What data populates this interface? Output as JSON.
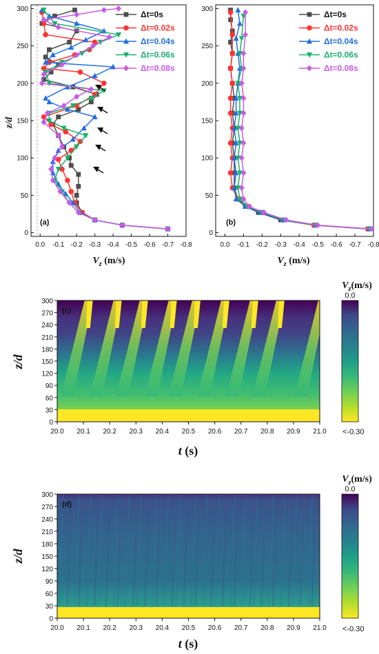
{
  "chart_data": [
    {
      "panel": "(a)",
      "type": "line",
      "xlabel_main": "V",
      "xlabel_sub": "z",
      "xlabel_unit": " (m/s)",
      "ylabel": "z/d",
      "xlim": [
        0.05,
        -0.8
      ],
      "ylim": [
        -5,
        305
      ],
      "xticks": [
        "0.0",
        "-0.1",
        "-0.2",
        "-0.3",
        "-0.4",
        "-0.5",
        "-0.6",
        "-0.7",
        "-0.8"
      ],
      "xtick_values": [
        0,
        -0.1,
        -0.2,
        -0.3,
        -0.4,
        -0.5,
        -0.6,
        -0.7,
        -0.8
      ],
      "yticks": [
        "0",
        "50",
        "100",
        "150",
        "200",
        "250",
        "300"
      ],
      "ytick_values": [
        0,
        50,
        100,
        150,
        200,
        250,
        300
      ],
      "legend_position": "top-right",
      "series": [
        {
          "name": "Δt=0s",
          "color": "#4d4d4d",
          "marker": "square",
          "x": [
            -0.7,
            -0.45,
            -0.3,
            -0.23,
            -0.2,
            -0.2,
            -0.21,
            -0.21,
            -0.17,
            -0.16,
            -0.13,
            -0.1,
            -0.07,
            -0.1,
            -0.21,
            -0.28,
            -0.31,
            -0.18,
            -0.02,
            -0.06,
            -0.1,
            -0.03,
            -0.05,
            -0.16,
            -0.2,
            -0.01,
            -0.08,
            -0.19
          ],
          "y": [
            5,
            10,
            17,
            27,
            40,
            50,
            62,
            78,
            90,
            100,
            115,
            130,
            145,
            155,
            165,
            175,
            185,
            195,
            205,
            215,
            225,
            235,
            245,
            255,
            270,
            280,
            290,
            298
          ]
        },
        {
          "name": "Δt=0.02s",
          "color": "#ff3333",
          "marker": "circle",
          "x": [
            -0.7,
            -0.45,
            -0.3,
            -0.23,
            -0.19,
            -0.17,
            -0.15,
            -0.12,
            -0.1,
            -0.17,
            -0.22,
            -0.14,
            -0.06,
            -0.02,
            -0.2,
            -0.3,
            -0.35,
            -0.22,
            -0.02,
            -0.05,
            -0.19,
            -0.27,
            -0.3,
            -0.03,
            -0.02,
            -0.01
          ],
          "y": [
            5,
            10,
            17,
            27,
            40,
            55,
            70,
            85,
            98,
            110,
            122,
            135,
            145,
            155,
            170,
            185,
            200,
            215,
            220,
            228,
            238,
            245,
            255,
            265,
            280,
            295
          ]
        },
        {
          "name": "Δt=0.04s",
          "color": "#1f6fe0",
          "marker": "triangle",
          "x": [
            -0.7,
            -0.45,
            -0.3,
            -0.22,
            -0.18,
            -0.14,
            -0.1,
            -0.07,
            -0.07,
            -0.1,
            -0.18,
            -0.24,
            -0.3,
            -0.15,
            -0.05,
            -0.03,
            -0.15,
            -0.3,
            -0.4,
            -0.03,
            -0.07,
            -0.17,
            -0.25,
            -0.35,
            -0.2,
            -0.05,
            -0.01
          ],
          "y": [
            5,
            10,
            17,
            27,
            40,
            52,
            65,
            80,
            95,
            110,
            125,
            140,
            155,
            165,
            175,
            180,
            195,
            210,
            222,
            228,
            238,
            248,
            258,
            270,
            280,
            290,
            298
          ]
        },
        {
          "name": "Δt=0.06s",
          "color": "#19b06a",
          "marker": "triangle-down",
          "x": [
            -0.7,
            -0.45,
            -0.3,
            -0.21,
            -0.16,
            -0.12,
            -0.08,
            -0.1,
            -0.15,
            -0.2,
            -0.25,
            -0.13,
            -0.05,
            -0.05,
            -0.18,
            -0.28,
            -0.35,
            -0.05,
            -0.03,
            -0.12,
            -0.23,
            -0.33,
            -0.43,
            -0.08,
            -0.02
          ],
          "y": [
            5,
            10,
            17,
            27,
            40,
            55,
            70,
            85,
            100,
            115,
            130,
            140,
            150,
            160,
            170,
            180,
            190,
            200,
            215,
            228,
            240,
            255,
            265,
            280,
            298
          ]
        },
        {
          "name": "Δt=0.08s",
          "color": "#c85ae6",
          "marker": "diamond",
          "x": [
            -0.7,
            -0.45,
            -0.3,
            -0.21,
            -0.16,
            -0.11,
            -0.07,
            -0.06,
            -0.08,
            -0.12,
            -0.1,
            -0.02,
            -0.04,
            -0.13,
            -0.2,
            -0.28,
            -0.01,
            -0.02,
            -0.12,
            -0.2,
            -0.29,
            -0.38,
            -0.1,
            -0.02,
            -0.2,
            -0.35,
            -0.43
          ],
          "y": [
            5,
            10,
            17,
            27,
            40,
            55,
            70,
            85,
            100,
            115,
            130,
            148,
            160,
            170,
            182,
            192,
            200,
            212,
            225,
            238,
            250,
            262,
            275,
            285,
            292,
            298,
            300
          ]
        }
      ]
    },
    {
      "panel": "(b)",
      "type": "line",
      "xlabel_main": "V",
      "xlabel_sub": "z",
      "xlabel_unit": " (m/s)",
      "xlim": [
        0.05,
        -0.8
      ],
      "ylim": [
        -5,
        305
      ],
      "xticks": [
        "0.0",
        "-0.1",
        "-0.2",
        "-0.3",
        "-0.4",
        "-0.5",
        "-0.6",
        "-0.7",
        "-0.8"
      ],
      "xtick_values": [
        0,
        -0.1,
        -0.2,
        -0.3,
        -0.4,
        -0.5,
        -0.6,
        -0.7,
        -0.8
      ],
      "yticks": [
        "0",
        "50",
        "100",
        "150",
        "200",
        "250",
        "300"
      ],
      "ytick_values": [
        0,
        50,
        100,
        150,
        200,
        250,
        300
      ],
      "legend_position": "top-right",
      "series": [
        {
          "name": "Δt=0s",
          "color": "#4d4d4d",
          "marker": "square",
          "x": [
            -0.77,
            -0.48,
            -0.3,
            -0.18,
            -0.11,
            -0.07,
            -0.05,
            -0.05,
            -0.05,
            -0.04,
            -0.05,
            -0.04,
            -0.05,
            -0.04,
            -0.03,
            -0.04,
            -0.03,
            -0.04,
            -0.03,
            -0.03
          ],
          "y": [
            5,
            10,
            17,
            27,
            35,
            45,
            60,
            80,
            100,
            120,
            140,
            160,
            180,
            200,
            220,
            240,
            255,
            270,
            285,
            298
          ]
        },
        {
          "name": "Δt=0.02s",
          "color": "#ff3333",
          "marker": "circle",
          "x": [
            -0.77,
            -0.48,
            -0.31,
            -0.2,
            -0.13,
            -0.07,
            -0.04,
            -0.03,
            -0.04,
            -0.03,
            -0.04,
            -0.03,
            -0.03,
            -0.04,
            -0.03,
            -0.04,
            -0.04,
            -0.03
          ],
          "y": [
            5,
            10,
            17,
            27,
            35,
            45,
            60,
            80,
            100,
            120,
            140,
            160,
            180,
            200,
            220,
            240,
            265,
            295
          ]
        },
        {
          "name": "Δt=0.04s",
          "color": "#1f6fe0",
          "marker": "triangle",
          "x": [
            -0.78,
            -0.49,
            -0.31,
            -0.19,
            -0.11,
            -0.06,
            -0.05,
            -0.06,
            -0.05,
            -0.06,
            -0.05,
            -0.06,
            -0.06,
            -0.07,
            -0.08,
            -0.07,
            -0.06,
            -0.08,
            -0.07
          ],
          "y": [
            5,
            10,
            17,
            27,
            35,
            45,
            60,
            80,
            100,
            120,
            140,
            160,
            180,
            200,
            220,
            240,
            260,
            280,
            298
          ]
        },
        {
          "name": "Δt=0.06s",
          "color": "#19b06a",
          "marker": "triangle-down",
          "x": [
            -0.78,
            -0.49,
            -0.32,
            -0.2,
            -0.12,
            -0.08,
            -0.07,
            -0.08,
            -0.07,
            -0.08,
            -0.07,
            -0.08,
            -0.08,
            -0.07,
            -0.09,
            -0.08,
            -0.09,
            -0.1
          ],
          "y": [
            5,
            10,
            17,
            27,
            35,
            45,
            60,
            80,
            100,
            120,
            140,
            160,
            180,
            200,
            220,
            240,
            260,
            290
          ]
        },
        {
          "name": "Δt=0.08s",
          "color": "#c85ae6",
          "marker": "diamond",
          "x": [
            -0.79,
            -0.5,
            -0.33,
            -0.21,
            -0.13,
            -0.1,
            -0.09,
            -0.1,
            -0.09,
            -0.1,
            -0.09,
            -0.1,
            -0.1,
            -0.09,
            -0.1,
            -0.1,
            -0.11,
            -0.11
          ],
          "y": [
            5,
            10,
            17,
            27,
            35,
            45,
            60,
            80,
            100,
            120,
            140,
            160,
            180,
            200,
            220,
            240,
            265,
            295
          ]
        }
      ]
    },
    {
      "panel": "(c)",
      "type": "heatmap",
      "xlabel_main": "t",
      "xlabel_unit": " (s)",
      "ylabel": "z/d",
      "xlim": [
        20.0,
        21.0
      ],
      "ylim": [
        0,
        300
      ],
      "xticks": [
        "20.0",
        "20.1",
        "20.2",
        "20.3",
        "20.4",
        "20.5",
        "20.6",
        "20.7",
        "20.8",
        "20.9",
        "21.0"
      ],
      "yticks": [
        "0",
        "30",
        "60",
        "90",
        "120",
        "150",
        "180",
        "210",
        "240",
        "270",
        "300"
      ],
      "colorbar_title_main": "V",
      "colorbar_title_sub": "z",
      "colorbar_title_unit": "(m/s)",
      "colorbar_top": "0.0",
      "colorbar_bottom": "<-0.30",
      "streaks_t_start": [
        20.06,
        20.17,
        20.27,
        20.38,
        20.47,
        20.58,
        20.69,
        20.79,
        20.95
      ]
    },
    {
      "panel": "(d)",
      "type": "heatmap",
      "xlabel_main": "t",
      "xlabel_unit": " (s)",
      "ylabel": "z/d",
      "xlim": [
        20.0,
        21.0
      ],
      "ylim": [
        0,
        300
      ],
      "xticks": [
        "20.0",
        "20.1",
        "20.2",
        "20.3",
        "20.4",
        "20.5",
        "20.6",
        "20.7",
        "20.8",
        "20.9",
        "21.0"
      ],
      "yticks": [
        "0",
        "30",
        "60",
        "90",
        "120",
        "150",
        "180",
        "210",
        "240",
        "270",
        "300"
      ],
      "colorbar_title_main": "V",
      "colorbar_title_sub": "z",
      "colorbar_title_unit": "(m/s)",
      "colorbar_top": "0.0",
      "colorbar_bottom": "<-0.30"
    }
  ]
}
